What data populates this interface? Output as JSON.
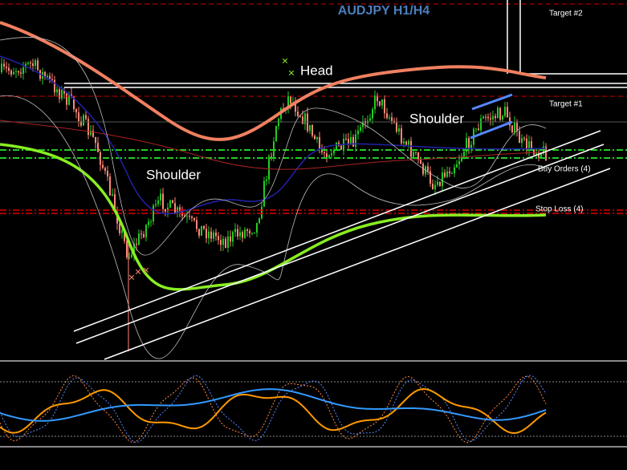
{
  "title": "AUDJPY H1/H4",
  "annotations": {
    "target2": "Target #2",
    "target1": "Target #1",
    "head": "Head",
    "shoulder_left": "Shoulder",
    "shoulder_right": "Shoulder",
    "buy_orders": "Buy Orders (4)",
    "stop_loss": "Stop Loss (4)"
  }
}
